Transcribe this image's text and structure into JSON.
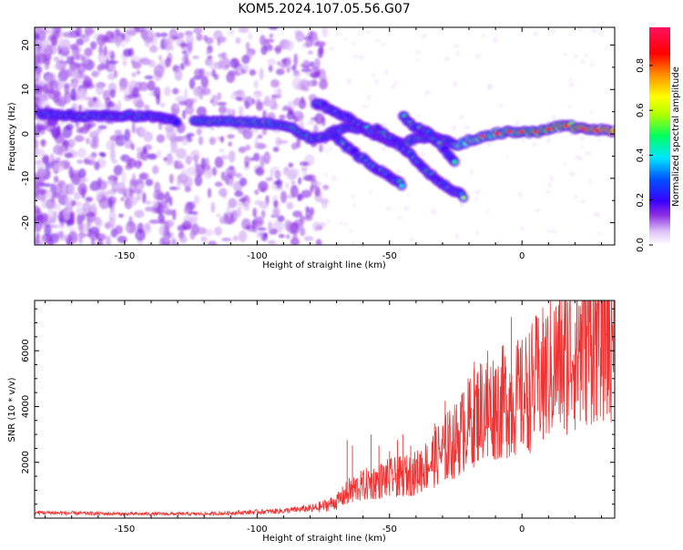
{
  "title": "KOM5.2024.107.05.56.G07",
  "chart_data": [
    {
      "type": "heatmap",
      "xlabel": "Height of straight line (km)",
      "ylabel": "Frequency (Hz)",
      "xlim": [
        -184,
        35
      ],
      "ylim": [
        -25,
        24
      ],
      "xticks": [
        -150,
        -100,
        -50,
        0
      ],
      "yticks": [
        -20,
        -10,
        0,
        10,
        20
      ],
      "colorbar": {
        "label": "Normalized spectral amplitude",
        "range": [
          0,
          0.97
        ],
        "ticks": [
          0.0,
          0.2,
          0.4,
          0.6,
          0.8
        ],
        "colors": [
          "#ffffff",
          "#d9b3f5",
          "#8a2be2",
          "#3a00ff",
          "#0050ff",
          "#00e5ff",
          "#00ff60",
          "#b0ff00",
          "#ffff00",
          "#ff9000",
          "#ff0000",
          "#ff1060"
        ]
      },
      "ridges": [
        {
          "name": "main",
          "points": [
            [
              -182,
              4.5
            ],
            [
              -165,
              4.0
            ],
            [
              -150,
              4.2
            ],
            [
              -140,
              3.8
            ],
            [
              -130,
              3.0
            ],
            [
              -120,
              2.8
            ],
            [
              -110,
              2.8
            ],
            [
              -100,
              2.5
            ],
            [
              -90,
              2.2
            ],
            [
              -85,
              0.5
            ],
            [
              -80,
              -1.0
            ],
            [
              -75,
              -0.5
            ],
            [
              -70,
              0.8
            ],
            [
              -65,
              1.5
            ],
            [
              -60,
              1.0
            ],
            [
              -55,
              -0.5
            ],
            [
              -50,
              -1.5
            ],
            [
              -45,
              -2.2
            ],
            [
              -40,
              -1.0
            ],
            [
              -35,
              -0.5
            ],
            [
              -30,
              -1.0
            ],
            [
              -25,
              -2.5
            ],
            [
              -20,
              -1.5
            ],
            [
              -15,
              -0.5
            ],
            [
              -10,
              0.0
            ],
            [
              -5,
              0.5
            ],
            [
              0,
              0.5
            ],
            [
              5,
              0.5
            ],
            [
              10,
              1.0
            ],
            [
              15,
              2.0
            ],
            [
              20,
              1.5
            ],
            [
              25,
              0.8
            ],
            [
              35,
              0.8
            ]
          ]
        },
        {
          "name": "branch-1",
          "points": [
            [
              -78,
              7.0
            ],
            [
              -72,
              5.5
            ],
            [
              -65,
              3.5
            ],
            [
              -60,
              1.5
            ],
            [
              -55,
              0.0
            ],
            [
              -48,
              -1.5
            ]
          ]
        },
        {
          "name": "branch-2",
          "points": [
            [
              -72,
              0.0
            ],
            [
              -65,
              -3.5
            ],
            [
              -58,
              -6.5
            ],
            [
              -52,
              -9.0
            ],
            [
              -45,
              -11.5
            ]
          ]
        },
        {
          "name": "branch-3",
          "points": [
            [
              -55,
              1.0
            ],
            [
              -45,
              -3.0
            ],
            [
              -40,
              -6.0
            ],
            [
              -35,
              -9.0
            ],
            [
              -28,
              -12.0
            ],
            [
              -22,
              -14.0
            ]
          ]
        },
        {
          "name": "branch-4",
          "points": [
            [
              -45,
              4.0
            ],
            [
              -40,
              1.5
            ],
            [
              -35,
              0.0
            ],
            [
              -30,
              -3.0
            ],
            [
              -25,
              -6.5
            ]
          ]
        }
      ]
    },
    {
      "type": "line",
      "xlabel": "Height of straight line (km)",
      "ylabel": "SNR (10 * v/v)",
      "xlim": [
        -184,
        35
      ],
      "ylim": [
        0,
        7800
      ],
      "xticks": [
        -150,
        -100,
        -50,
        0
      ],
      "yticks": [
        2000,
        4000,
        6000
      ],
      "color": "#ee3333",
      "envelope": [
        [
          -184,
          200
        ],
        [
          -150,
          150
        ],
        [
          -120,
          150
        ],
        [
          -100,
          220
        ],
        [
          -90,
          260
        ],
        [
          -80,
          350
        ],
        [
          -75,
          480
        ],
        [
          -70,
          650
        ],
        [
          -65,
          1100
        ],
        [
          -60,
          1300
        ],
        [
          -55,
          1450
        ],
        [
          -50,
          1600
        ],
        [
          -45,
          1650
        ],
        [
          -40,
          1800
        ],
        [
          -35,
          2200
        ],
        [
          -30,
          2700
        ],
        [
          -25,
          3100
        ],
        [
          -20,
          3800
        ],
        [
          -15,
          4400
        ],
        [
          -10,
          4500
        ],
        [
          -5,
          4700
        ],
        [
          0,
          4800
        ],
        [
          5,
          5400
        ],
        [
          10,
          5800
        ],
        [
          15,
          6300
        ],
        [
          20,
          6800
        ],
        [
          25,
          7200
        ],
        [
          30,
          7500
        ],
        [
          35,
          7600
        ]
      ],
      "spikes": [
        [
          -66,
          2800
        ],
        [
          -64,
          2600
        ],
        [
          -57,
          3000
        ],
        [
          -54,
          2600
        ],
        [
          -50,
          2400
        ],
        [
          -47,
          2800
        ],
        [
          -45,
          3000
        ],
        [
          -42,
          2600
        ],
        [
          -38,
          2400
        ],
        [
          -33,
          3400
        ],
        [
          -29,
          4200
        ],
        [
          -28,
          3800
        ],
        [
          -22,
          4500
        ],
        [
          -18,
          5600
        ],
        [
          -13,
          6000
        ],
        [
          -8,
          4200
        ],
        [
          -4,
          7200
        ],
        [
          2,
          5200
        ],
        [
          8,
          7000
        ],
        [
          16,
          7900
        ],
        [
          22,
          7600
        ],
        [
          28,
          7400
        ],
        [
          33,
          7800
        ]
      ]
    }
  ]
}
